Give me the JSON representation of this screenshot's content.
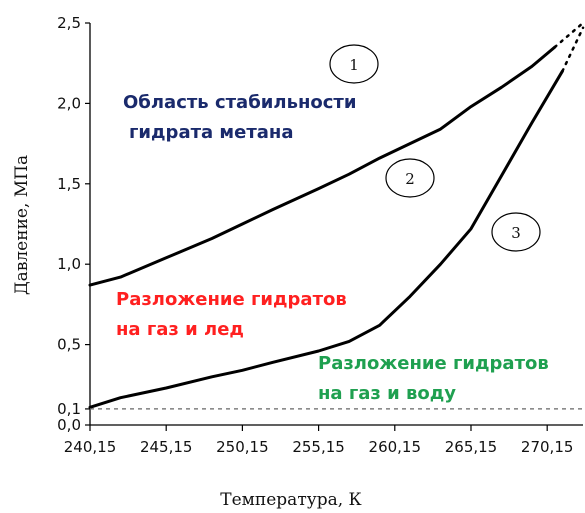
{
  "chart_data": {
    "type": "line",
    "xlabel": "Температура, К",
    "ylabel": "Давление, МПа",
    "xlim": [
      240.15,
      272.5
    ],
    "ylim": [
      0.0,
      2.5
    ],
    "x_ticks": [
      "240,15",
      "245,15",
      "250,15",
      "255,15",
      "260,15",
      "265,15",
      "270,15"
    ],
    "x_tick_values": [
      240.15,
      245.15,
      250.15,
      255.15,
      260.15,
      265.15,
      270.15
    ],
    "y_ticks": [
      "0,0",
      "0,1",
      "0,5",
      "1,0",
      "1,5",
      "2,0",
      "2,5"
    ],
    "y_tick_values": [
      0.0,
      0.1,
      0.5,
      1.0,
      1.5,
      2.0,
      2.5
    ],
    "grid": false,
    "series": [
      {
        "color": "#000000",
        "style": "solid",
        "x": [
          240.15,
          242.15,
          245.15,
          248.15,
          250.15,
          252.15,
          255.15,
          257.15,
          259.15,
          261.15,
          263.15,
          265.15,
          267.15,
          269.15,
          270.65
        ],
        "y": [
          0.87,
          0.92,
          1.04,
          1.16,
          1.25,
          1.34,
          1.47,
          1.56,
          1.66,
          1.75,
          1.84,
          1.98,
          2.1,
          2.23,
          2.35
        ]
      },
      {
        "color": "#000000",
        "style": "solid",
        "x": [
          240.15,
          242.15,
          245.15,
          248.15,
          250.15,
          252.15,
          255.15,
          257.15,
          259.15,
          261.15,
          263.15,
          265.15,
          267.15,
          269.15,
          271.15
        ],
        "y": [
          0.11,
          0.17,
          0.23,
          0.3,
          0.34,
          0.39,
          0.46,
          0.52,
          0.62,
          0.8,
          1.0,
          1.22,
          1.55,
          1.88,
          2.2
        ]
      },
      {
        "color": "#000000",
        "style": "dotted",
        "x": [
          270.65,
          272.5
        ],
        "y": [
          2.35,
          2.5
        ]
      },
      {
        "color": "#000000",
        "style": "dotted",
        "x": [
          271.15,
          272.5
        ],
        "y": [
          2.2,
          2.47
        ]
      },
      {
        "color": "#666666",
        "style": "dashed",
        "x": [
          240.15,
          272.5
        ],
        "y": [
          0.1,
          0.1
        ]
      }
    ],
    "annotations": [
      {
        "text": "Область  стабильности",
        "color": "#1a2a6c"
      },
      {
        "text": "гидрата  метана",
        "color": "#1a2a6c"
      },
      {
        "text": "Разложение гидратов",
        "color": "#ff2020"
      },
      {
        "text": "на газ и лед",
        "color": "#ff2020"
      },
      {
        "text": "Разложение гидратов",
        "color": "#1fa050"
      },
      {
        "text": "на газ и воду",
        "color": "#1fa050"
      }
    ],
    "region_labels": [
      "1",
      "2",
      "3"
    ]
  }
}
